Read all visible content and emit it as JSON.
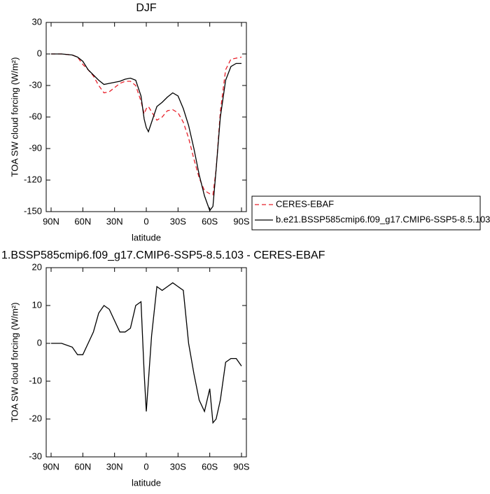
{
  "chart_data": [
    {
      "type": "line",
      "title": "DJF",
      "xlabel": "latitude",
      "ylabel": "TOA SW cloud forcing (W/m²)",
      "x": [
        90,
        80,
        70,
        65,
        60,
        55,
        50,
        45,
        40,
        35,
        30,
        25,
        20,
        15,
        10,
        5,
        2,
        0,
        -2,
        -5,
        -10,
        -15,
        -20,
        -25,
        -30,
        -35,
        -40,
        -45,
        -50,
        -55,
        -60,
        -63,
        -66,
        -70,
        -75,
        -80,
        -85,
        -90
      ],
      "xlim": [
        90,
        -90
      ],
      "xticks": [
        {
          "value": 90,
          "label": "90N"
        },
        {
          "value": 60,
          "label": "60N"
        },
        {
          "value": 30,
          "label": "30N"
        },
        0,
        {
          "value": -30,
          "label": "30S"
        },
        {
          "value": -60,
          "label": "60S"
        },
        {
          "value": -90,
          "label": "90S"
        }
      ],
      "ylim": [
        -150,
        30
      ],
      "yticks": [
        -150,
        -120,
        -90,
        -60,
        -30,
        0,
        30
      ],
      "legend": "right",
      "series": [
        {
          "name": "CERES-EBAF",
          "color": "#e8202a",
          "style": "dashed",
          "values": [
            0,
            0,
            -1,
            -3,
            -10,
            -15,
            -21,
            -30,
            -37,
            -36,
            -32,
            -28,
            -26,
            -26,
            -30,
            -45,
            -57,
            -52,
            -50,
            -55,
            -63,
            -60,
            -54,
            -53,
            -56,
            -65,
            -80,
            -100,
            -118,
            -130,
            -133,
            -134,
            -110,
            -55,
            -15,
            -5,
            -4,
            -3
          ]
        },
        {
          "name": "b.e21.BSSP585cmip6.f09_g17.CMIP6-SSP5-8.5.103",
          "color": "#000000",
          "style": "solid",
          "values": [
            0,
            0,
            -1,
            -3,
            -7,
            -15,
            -20,
            -25,
            -29,
            -28,
            -27,
            -26,
            -24,
            -23,
            -25,
            -40,
            -62,
            -70,
            -74,
            -65,
            -50,
            -46,
            -41,
            -37,
            -40,
            -52,
            -68,
            -90,
            -115,
            -135,
            -149,
            -145,
            -110,
            -60,
            -25,
            -12,
            -9,
            -9
          ]
        }
      ]
    },
    {
      "type": "line",
      "title": "1.BSSP585cmip6.f09_g17.CMIP6-SSP5-8.5.103 - CERES-EBAF",
      "xlabel": "latitude",
      "ylabel": "TOA SW cloud forcing (W/m²)",
      "x": [
        90,
        80,
        70,
        65,
        60,
        55,
        50,
        45,
        40,
        35,
        30,
        25,
        20,
        15,
        10,
        5,
        2,
        0,
        -2,
        -5,
        -10,
        -15,
        -20,
        -25,
        -30,
        -35,
        -40,
        -45,
        -50,
        -55,
        -60,
        -63,
        -66,
        -70,
        -75,
        -80,
        -85,
        -90
      ],
      "xlim": [
        90,
        -90
      ],
      "xticks": [
        {
          "value": 90,
          "label": "90N"
        },
        {
          "value": 60,
          "label": "60N"
        },
        {
          "value": 30,
          "label": "30N"
        },
        0,
        {
          "value": -30,
          "label": "30S"
        },
        {
          "value": -60,
          "label": "60S"
        },
        {
          "value": -90,
          "label": "90S"
        }
      ],
      "ylim": [
        -30,
        20
      ],
      "yticks": [
        -30,
        -20,
        -10,
        0,
        10,
        20
      ],
      "series": [
        {
          "color": "#000000",
          "style": "solid",
          "values": [
            0,
            0,
            -1,
            -3,
            -3,
            0,
            3,
            8,
            10,
            9,
            6,
            3,
            3,
            4,
            10,
            11,
            -8,
            -18,
            -10,
            2,
            15,
            14,
            15,
            16,
            15,
            14,
            0,
            -8,
            -15,
            -18,
            -12,
            -21,
            -20,
            -15,
            -5,
            -4,
            -4,
            -6
          ]
        }
      ]
    }
  ]
}
